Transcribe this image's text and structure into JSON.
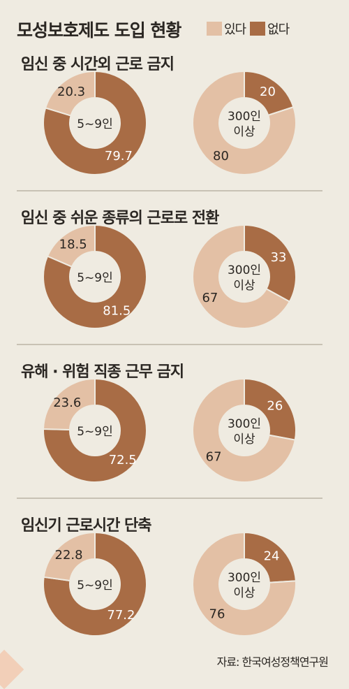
{
  "title": "모성보호제도 도입 현황",
  "legend": [
    {
      "label": "있다",
      "color": "#e3c0a5"
    },
    {
      "label": "없다",
      "color": "#a86c45"
    }
  ],
  "source": "자료: 한국여성정책연구원",
  "chart_data": [
    {
      "type": "pie",
      "title": "임신 중 시간외 근로 금지",
      "charts": [
        {
          "label": "5~9인",
          "slices": [
            {
              "name": "있다",
              "value": 20.3,
              "label": "20.3"
            },
            {
              "name": "없다",
              "value": 79.7,
              "label": "79.7"
            }
          ]
        },
        {
          "label": "300인 이상",
          "slices": [
            {
              "name": "있다",
              "value": 80,
              "label": "80"
            },
            {
              "name": "없다",
              "value": 20,
              "label": "20"
            }
          ]
        }
      ]
    },
    {
      "type": "pie",
      "title": "임신 중 쉬운 종류의 근로로 전환",
      "charts": [
        {
          "label": "5~9인",
          "slices": [
            {
              "name": "있다",
              "value": 18.5,
              "label": "18.5"
            },
            {
              "name": "없다",
              "value": 81.5,
              "label": "81.5"
            }
          ]
        },
        {
          "label": "300인 이상",
          "slices": [
            {
              "name": "있다",
              "value": 67,
              "label": "67"
            },
            {
              "name": "없다",
              "value": 33,
              "label": "33"
            }
          ]
        }
      ]
    },
    {
      "type": "pie",
      "title": "유해 · 위험 직종 근무 금지",
      "charts": [
        {
          "label": "5~9인",
          "slices": [
            {
              "name": "있다",
              "value": 23.6,
              "label": "23.6"
            },
            {
              "name": "없다",
              "value": 72.5,
              "label": "72.5"
            }
          ]
        },
        {
          "label": "300인 이상",
          "slices": [
            {
              "name": "있다",
              "value": 67,
              "label": "67"
            },
            {
              "name": "없다",
              "value": 26,
              "label": "26"
            }
          ]
        }
      ]
    },
    {
      "type": "pie",
      "title": "임신기 근로시간 단축",
      "charts": [
        {
          "label": "5~9인",
          "slices": [
            {
              "name": "있다",
              "value": 22.8,
              "label": "22.8"
            },
            {
              "name": "없다",
              "value": 77.2,
              "label": "77.2"
            }
          ]
        },
        {
          "label": "300인 이상",
          "slices": [
            {
              "name": "있다",
              "value": 76,
              "label": "76"
            },
            {
              "name": "없다",
              "value": 24,
              "label": "24"
            }
          ]
        }
      ]
    }
  ]
}
